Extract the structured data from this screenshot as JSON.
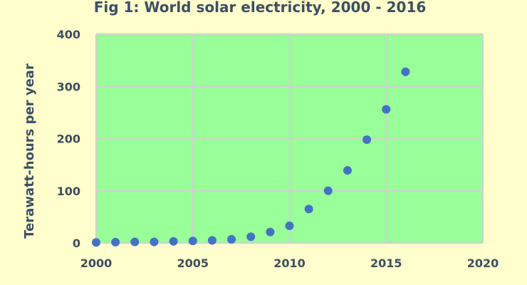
{
  "chart_data": {
    "type": "scatter",
    "title": "Fig 1: World solar electricity, 2000 - 2016",
    "xlabel": "",
    "ylabel": "Terawatt-hours per year",
    "xlim": [
      2000,
      2020
    ],
    "ylim": [
      0,
      400
    ],
    "x_ticks": [
      "2000",
      "2005",
      "2010",
      "2015",
      "2020"
    ],
    "y_ticks": [
      "0",
      "100",
      "200",
      "300",
      "400"
    ],
    "grid": true,
    "legend": "none",
    "colors": {
      "background": "#fffecc",
      "plot_area": "#99ff99",
      "point": "#4472c4",
      "grid": "#d0d0d0",
      "text": "#3d4f63"
    },
    "x": [
      2000,
      2001,
      2002,
      2003,
      2004,
      2005,
      2006,
      2007,
      2008,
      2009,
      2010,
      2011,
      2012,
      2013,
      2014,
      2015,
      2016
    ],
    "y": [
      1,
      1.5,
      2,
      2,
      3,
      4,
      5,
      7,
      12,
      21,
      33,
      65,
      100,
      139,
      198,
      256,
      328
    ]
  }
}
